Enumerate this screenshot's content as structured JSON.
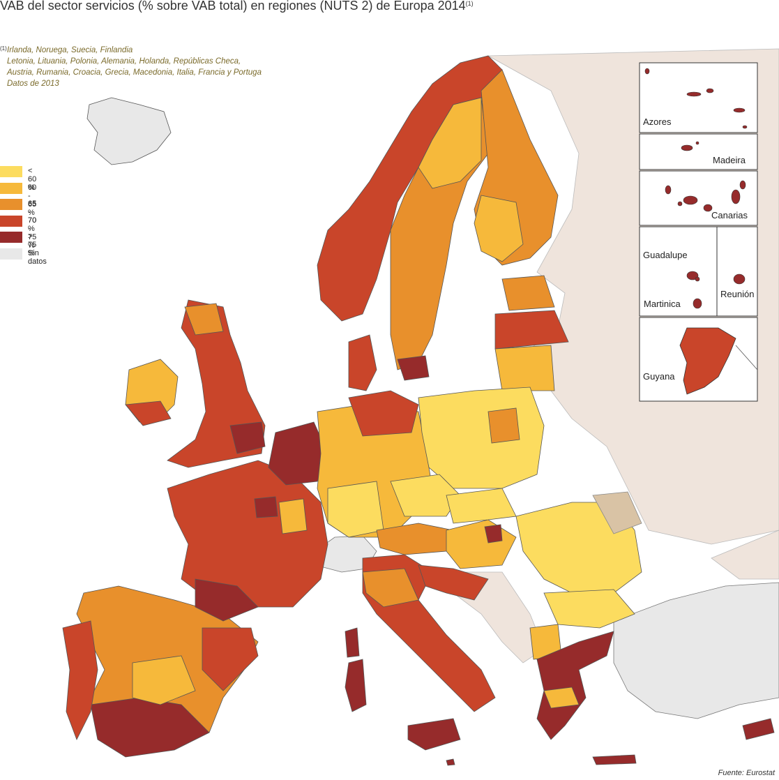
{
  "title": "VAB del sector servicios (% sobre VAB total)  en regiones (NUTS 2) de Europa 2014",
  "title_sup": "(1)",
  "notes": {
    "marker": "(1)",
    "lines": [
      "Irlanda, Noruega, Suecia, Finlandia",
      "Letonia, Lituania, Polonia, Alemania, Holanda, Repúblicas Checa,",
      "Austria, Rumania, Croacia, Grecia, Macedonia, Italia, Francia y Portuga",
      "Datos de 2013"
    ]
  },
  "legend": [
    {
      "label": "< 60 %",
      "color": "#fcdc5f"
    },
    {
      "label": "60 - 65 %",
      "color": "#f6b93b"
    },
    {
      "label": "65 - 70 %",
      "color": "#e8902c"
    },
    {
      "label": "70 - 75 %",
      "color": "#c9452a"
    },
    {
      "label": "> 75 %",
      "color": "#962b2b"
    },
    {
      "label": "Sin datos",
      "color": "#e8e8e8"
    }
  ],
  "colors": {
    "sea": "#ffffff",
    "non_eu_land": "#efe4dc",
    "no_data": "#e8e8e8",
    "border": "#666666"
  },
  "insets": [
    {
      "label": "Azores"
    },
    {
      "label": "Madeira"
    },
    {
      "label": "Canarias"
    },
    {
      "label": "Guadalupe"
    },
    {
      "label": "Martinica"
    },
    {
      "label": "Reunión"
    },
    {
      "label": "Guyana"
    }
  ],
  "source": "Fuente: Eurostat"
}
